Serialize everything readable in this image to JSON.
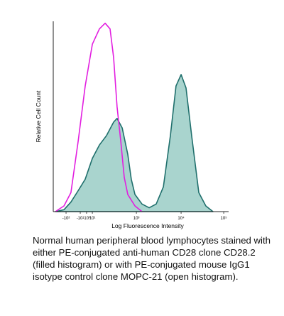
{
  "chart_data": {
    "type": "area",
    "xlabel": "Log Fluorescence Intensity",
    "ylabel": "Relative Cell Count",
    "xlim": [
      0,
      1000
    ],
    "ylim": [
      0,
      100
    ],
    "xticks": [
      {
        "value": 73,
        "label": "-10²"
      },
      {
        "value": 154,
        "label": "-10¹"
      },
      {
        "value": 190,
        "label": "-10⁰"
      },
      {
        "value": 223,
        "label": "10¹"
      },
      {
        "value": 474,
        "label": "10³"
      },
      {
        "value": 729,
        "label": "10⁴"
      },
      {
        "value": 972,
        "label": "10⁵"
      }
    ],
    "series": [
      {
        "color": "#1f6f6c",
        "fill": "#a9d4ce",
        "filled": true,
        "x": [
          12,
          61,
          101,
          142,
          182,
          223,
          263,
          304,
          344,
          364,
          393,
          425,
          445,
          466,
          506,
          547,
          587,
          628,
          668,
          700,
          729,
          757,
          789,
          830,
          870,
          911
        ],
        "values": [
          0,
          1,
          5,
          11,
          17,
          28,
          35,
          40,
          47,
          49,
          44,
          30,
          17,
          9,
          4,
          2,
          4,
          13,
          40,
          66,
          72,
          65,
          40,
          10,
          3,
          0
        ]
      },
      {
        "color": "#e21ee0",
        "filled": false,
        "x": [
          12,
          61,
          101,
          142,
          182,
          223,
          263,
          296,
          324,
          344,
          364,
          385,
          405,
          425,
          466,
          506
        ],
        "values": [
          0,
          3,
          10,
          37,
          66,
          88,
          96,
          99,
          96,
          81,
          55,
          37,
          18,
          9,
          3,
          0
        ]
      }
    ]
  },
  "caption": "Normal human peripheral blood lymphocytes stained with either PE-conjugated anti-human CD28 clone CD28.2 (filled histogram) or with PE-conjugated mouse IgG1 isotype control clone MOPC-21 (open histogram)."
}
